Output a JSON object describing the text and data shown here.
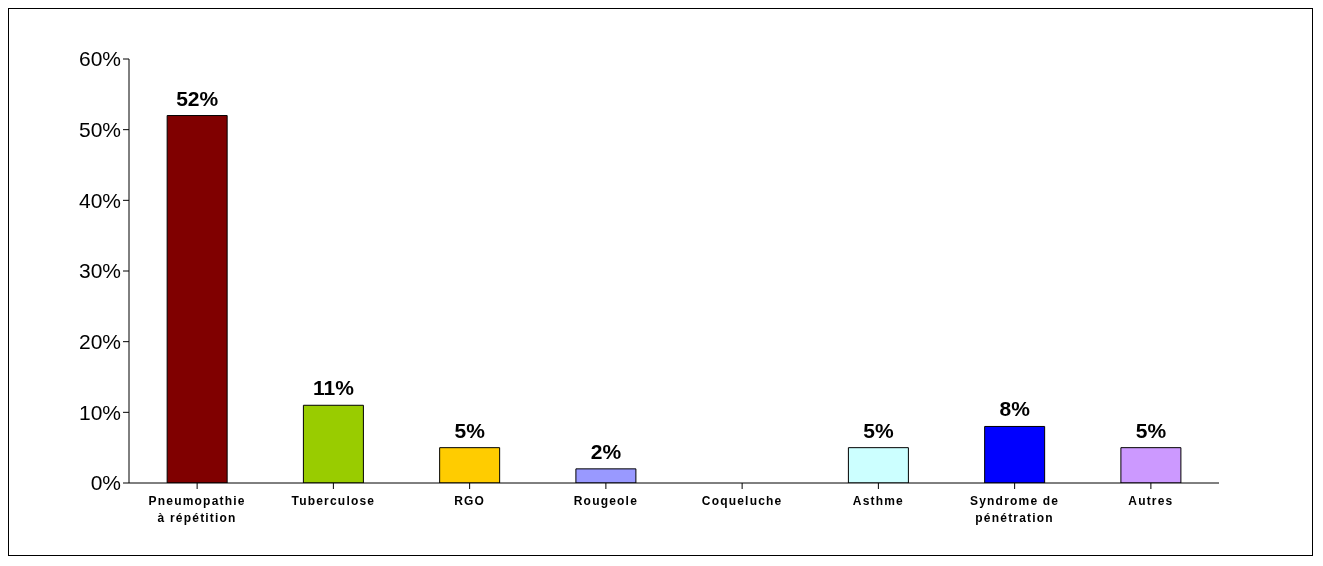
{
  "chart_data": {
    "type": "bar",
    "categories": [
      "Pneumopathie à répétition",
      "Tuberculose",
      "RGO",
      "Rougeole",
      "Coqueluche",
      "Asthme",
      "Syndrome de pénétration",
      "Autres"
    ],
    "values": [
      52,
      11,
      5,
      2,
      0,
      5,
      8,
      5
    ],
    "colors": [
      "#800000",
      "#99cc00",
      "#ffcc00",
      "#9999ff",
      "#ff99cc",
      "#ccffff",
      "#0000ff",
      "#cc99ff"
    ],
    "value_labels": [
      "52%",
      "11%",
      "5%",
      "2%",
      null,
      "5%",
      "8%",
      "5%"
    ],
    "ylim": [
      0,
      60
    ],
    "yticks": [
      {
        "value": 0,
        "label": "0%"
      },
      {
        "value": 10,
        "label": "10%"
      },
      {
        "value": 20,
        "label": "20%"
      },
      {
        "value": 30,
        "label": "30%"
      },
      {
        "value": 40,
        "label": "40%"
      },
      {
        "value": 50,
        "label": "50%"
      },
      {
        "value": 60,
        "label": "60%"
      }
    ],
    "grid": false,
    "legend": false
  }
}
